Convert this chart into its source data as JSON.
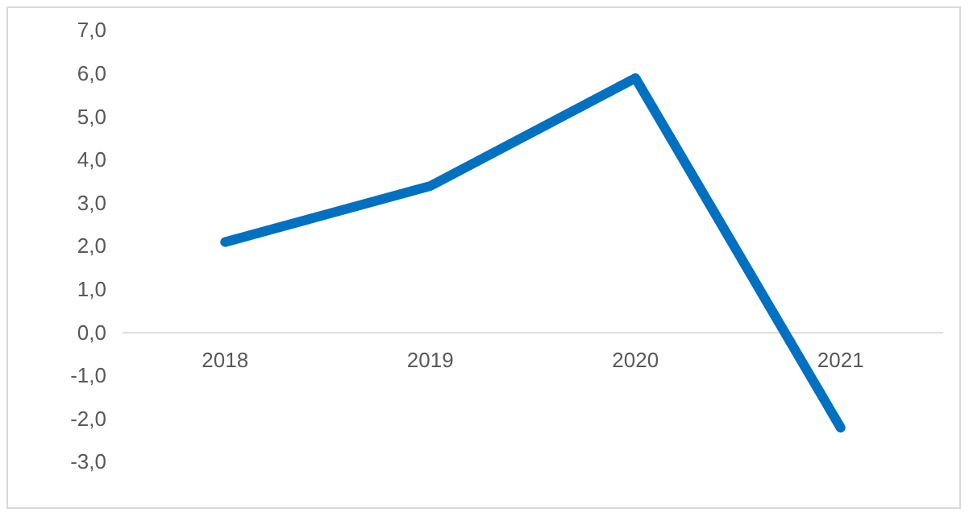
{
  "chart_data": {
    "type": "line",
    "categories": [
      "2018",
      "2019",
      "2020",
      "2021"
    ],
    "series": [
      {
        "color": "#0070c0",
        "values": [
          2.1,
          3.4,
          5.9,
          -2.2
        ]
      }
    ],
    "ylim": [
      -3,
      7
    ],
    "yticks": [
      {
        "value": -3,
        "label": "-3,0"
      },
      {
        "value": -2,
        "label": "-2,0"
      },
      {
        "value": -1,
        "label": "-1,0"
      },
      {
        "value": 0,
        "label": "0,0"
      },
      {
        "value": 1,
        "label": "1,0"
      },
      {
        "value": 2,
        "label": "2,0"
      },
      {
        "value": 3,
        "label": "3,0"
      },
      {
        "value": 4,
        "label": "4,0"
      },
      {
        "value": 5,
        "label": "5,0"
      },
      {
        "value": 6,
        "label": "6,0"
      },
      {
        "value": 7,
        "label": "7,0"
      }
    ],
    "grid": false,
    "marker": "none",
    "line_style": "solid"
  }
}
